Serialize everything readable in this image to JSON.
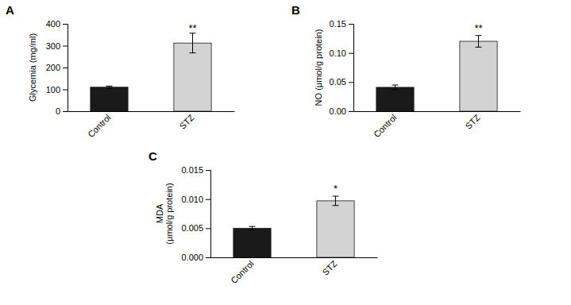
{
  "chart_data": [
    {
      "type": "bar",
      "title": "A",
      "categories": [
        "Control",
        "STZ"
      ],
      "values": [
        110,
        312
      ],
      "errors": [
        5,
        45
      ],
      "colors": [
        "#1a1a1a",
        "#d3d3d3"
      ],
      "ylabel": "Glycemia (mg/ml)",
      "ylim": [
        0,
        400
      ],
      "yticks": [
        0,
        100,
        200,
        300,
        400
      ],
      "annotations": [
        {
          "text": "**",
          "category": "STZ",
          "y": 362
        }
      ]
    },
    {
      "type": "bar",
      "title": "B",
      "categories": [
        "Control",
        "STZ"
      ],
      "values": [
        0.041,
        0.12
      ],
      "errors": [
        0.004,
        0.01
      ],
      "colors": [
        "#1a1a1a",
        "#d3d3d3"
      ],
      "ylabel": "NO (μmol/g protein)",
      "ylim": [
        0,
        0.15
      ],
      "yticks": [
        {
          "value": 0,
          "label": "0.00"
        },
        0.05,
        {
          "value": 0.1,
          "label": "0.10"
        },
        0.15
      ],
      "annotations": [
        {
          "text": "**",
          "category": "STZ",
          "y": 0.136
        }
      ]
    },
    {
      "type": "bar",
      "title": "C",
      "categories": [
        "Control",
        "STZ"
      ],
      "values": [
        0.005,
        0.0097
      ],
      "errors": [
        0.0003,
        0.0008
      ],
      "colors": [
        "#1a1a1a",
        "#d3d3d3"
      ],
      "ylabel": "MDA\n(μmol/g protein)",
      "ylim": [
        0,
        0.015
      ],
      "yticks": [
        {
          "value": 0,
          "label": "0.000"
        },
        0.005,
        {
          "value": 0.01,
          "label": "0.010"
        },
        0.015
      ],
      "annotations": [
        {
          "text": "*",
          "category": "STZ",
          "y": 0.0112
        }
      ]
    }
  ]
}
